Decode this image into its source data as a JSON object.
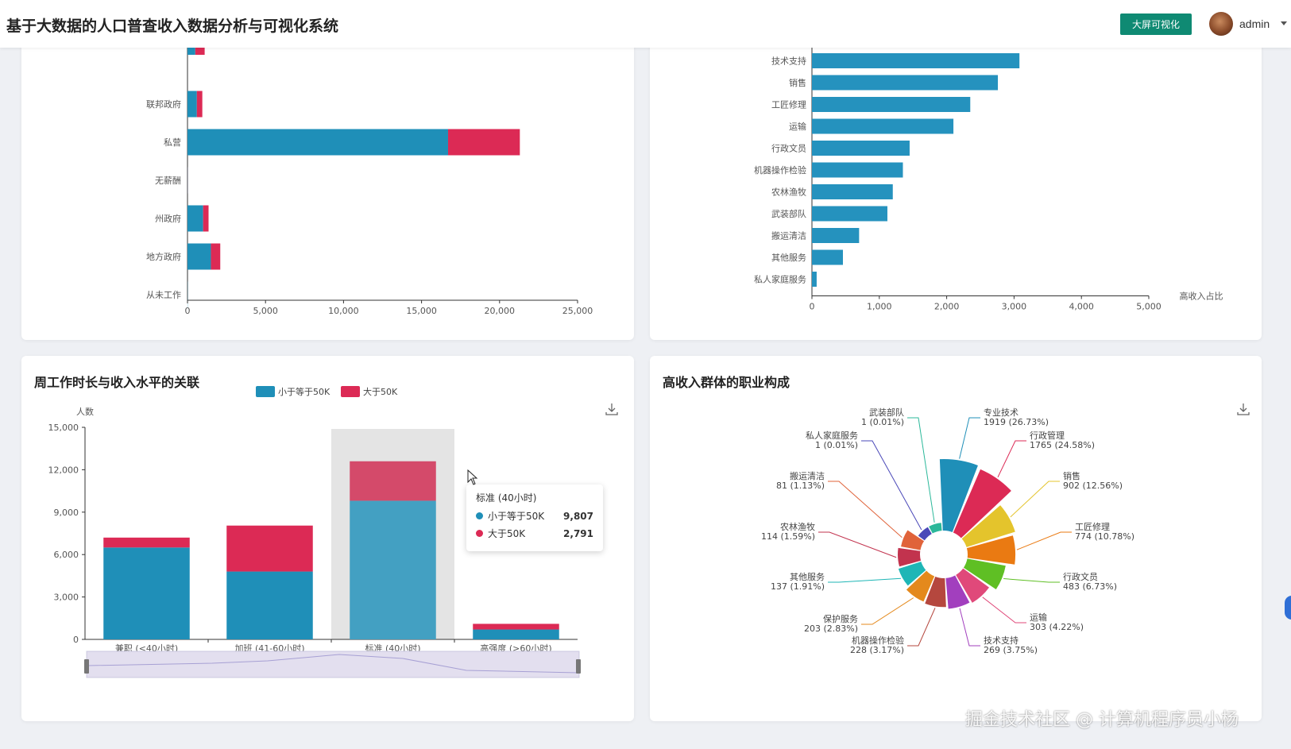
{
  "header": {
    "title": "基于大数据的人口普查收入数据分析与可视化系统",
    "bigscreen_label": "大屏可视化",
    "user": "admin"
  },
  "colors": {
    "low": "#1f8fb8",
    "high": "#dc2a55",
    "accent": "#0f8a73"
  },
  "panels": {
    "workclass": {
      "chart_data": {
        "type": "bar",
        "orientation": "horizontal",
        "stacked": true,
        "categories": [
          "",
          "联邦政府",
          "私营",
          "无薪酬",
          "州政府",
          "地方政府",
          "从未工作"
        ],
        "series": [
          {
            "name": "小于等于50K",
            "values": [
              500,
              600,
              16700,
              10,
              1000,
              1500,
              10
            ]
          },
          {
            "name": "大于50K",
            "values": [
              600,
              350,
              4600,
              5,
              350,
              600,
              0
            ]
          }
        ],
        "x_ticks": [
          "0",
          "5,000",
          "10,000",
          "15,000",
          "20,000",
          "25,000"
        ],
        "xlim": [
          0,
          25000
        ]
      }
    },
    "occupation_ratio": {
      "chart_data": {
        "type": "bar",
        "orientation": "horizontal",
        "categories": [
          "技术支持",
          "销售",
          "工匠修理",
          "运输",
          "行政文员",
          "机器操作检验",
          "农林渔牧",
          "武装部队",
          "搬运清洁",
          "其他服务",
          "私人家庭服务"
        ],
        "values": [
          3080,
          2760,
          2350,
          2100,
          1450,
          1350,
          1200,
          1120,
          700,
          460,
          70
        ],
        "x_ticks": [
          "0",
          "1,000",
          "2,000",
          "3,000",
          "4,000",
          "5,000"
        ],
        "xlim": [
          0,
          5000
        ],
        "xlabel": "高收入占比"
      }
    },
    "hours": {
      "title": "周工作时长与收入水平的关联",
      "legend": [
        "小于等于50K",
        "大于50K"
      ],
      "tooltip": {
        "title": "标准 (40小时)",
        "rows": [
          {
            "label": "小于等于50K",
            "value": "9,807"
          },
          {
            "label": "大于50K",
            "value": "2,791"
          }
        ]
      },
      "chart_data": {
        "type": "bar",
        "stacked": true,
        "categories": [
          "兼职 (<40小时)",
          "加班 (41-60小时)",
          "标准 (40小时)",
          "高强度 (>60小时)"
        ],
        "series": [
          {
            "name": "小于等于50K",
            "values": [
              6500,
              4800,
              9807,
              700
            ]
          },
          {
            "name": "大于50K",
            "values": [
              700,
              3250,
              2791,
              400
            ]
          }
        ],
        "ylabel": "人数",
        "y_ticks": [
          "0",
          "3,000",
          "6,000",
          "9,000",
          "12,000",
          "15,000"
        ],
        "ylim": [
          0,
          15000
        ]
      }
    },
    "high_income_occupation": {
      "title": "高收入群体的职业构成",
      "chart_data": {
        "type": "pie",
        "rose": true,
        "slices": [
          {
            "name": "专业技术",
            "label": "1919 (26.73%)",
            "value": 1919,
            "color": "#1f8fb8"
          },
          {
            "name": "行政管理",
            "label": "1765 (24.58%)",
            "value": 1765,
            "color": "#dc2a55"
          },
          {
            "name": "销售",
            "label": "902 (12.56%)",
            "value": 902,
            "color": "#e4c42c"
          },
          {
            "name": "工匠修理",
            "label": "774 (10.78%)",
            "value": 774,
            "color": "#ea7a12"
          },
          {
            "name": "行政文员",
            "label": "483 (6.73%)",
            "value": 483,
            "color": "#5fbf24"
          },
          {
            "name": "运输",
            "label": "303 (4.22%)",
            "value": 303,
            "color": "#e0497a"
          },
          {
            "name": "技术支持",
            "label": "269 (3.75%)",
            "value": 269,
            "color": "#a23fbe"
          },
          {
            "name": "机器操作检验",
            "label": "228 (3.17%)",
            "value": 228,
            "color": "#b5473e"
          },
          {
            "name": "保护服务",
            "label": "203 (2.83%)",
            "value": 203,
            "color": "#e4891c"
          },
          {
            "name": "其他服务",
            "label": "137 (1.91%)",
            "value": 137,
            "color": "#1eb6b6"
          },
          {
            "name": "农林渔牧",
            "label": "114 (1.59%)",
            "value": 114,
            "color": "#c2334e"
          },
          {
            "name": "搬运清洁",
            "label": "81 (1.13%)",
            "value": 81,
            "color": "#e0633a"
          },
          {
            "name": "私人家庭服务",
            "label": "1 (0.01%)",
            "value": 1,
            "color": "#4a48b8"
          },
          {
            "name": "武装部队",
            "label": "1 (0.01%)",
            "value": 1,
            "color": "#2bb89a"
          }
        ]
      }
    }
  },
  "watermark": "掘金技术社区 @ 计算机程序员小杨"
}
